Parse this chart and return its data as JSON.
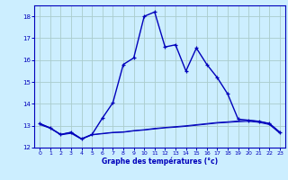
{
  "title": "Graphe des températures (°c)",
  "background_color": "#cceeff",
  "grid_color": "#aacccc",
  "line_color": "#0000bb",
  "hours": [
    0,
    1,
    2,
    3,
    4,
    5,
    6,
    7,
    8,
    9,
    10,
    11,
    12,
    13,
    14,
    15,
    16,
    17,
    18,
    19,
    20,
    21,
    22,
    23
  ],
  "temp_main": [
    13.1,
    12.9,
    12.6,
    12.7,
    12.4,
    12.6,
    13.35,
    14.05,
    15.8,
    16.1,
    18.0,
    18.2,
    16.6,
    16.7,
    15.5,
    16.55,
    15.8,
    15.2,
    14.45,
    13.3,
    13.25,
    13.2,
    13.1,
    12.7
  ],
  "temp_flat1": [
    13.1,
    12.9,
    12.6,
    12.7,
    12.4,
    12.6,
    12.65,
    12.7,
    12.72,
    12.78,
    12.82,
    12.88,
    12.92,
    12.96,
    13.0,
    13.05,
    13.1,
    13.15,
    13.18,
    13.22,
    13.25,
    13.2,
    13.1,
    12.7
  ],
  "temp_flat2": [
    13.05,
    12.88,
    12.58,
    12.65,
    12.38,
    12.58,
    12.63,
    12.68,
    12.7,
    12.76,
    12.8,
    12.85,
    12.9,
    12.93,
    12.97,
    13.02,
    13.07,
    13.12,
    13.15,
    13.18,
    13.2,
    13.15,
    13.05,
    12.65
  ],
  "ylim": [
    12,
    18.5
  ],
  "yticks": [
    12,
    13,
    14,
    15,
    16,
    17,
    18
  ],
  "xlim_min": -0.5,
  "xlim_max": 23.5
}
